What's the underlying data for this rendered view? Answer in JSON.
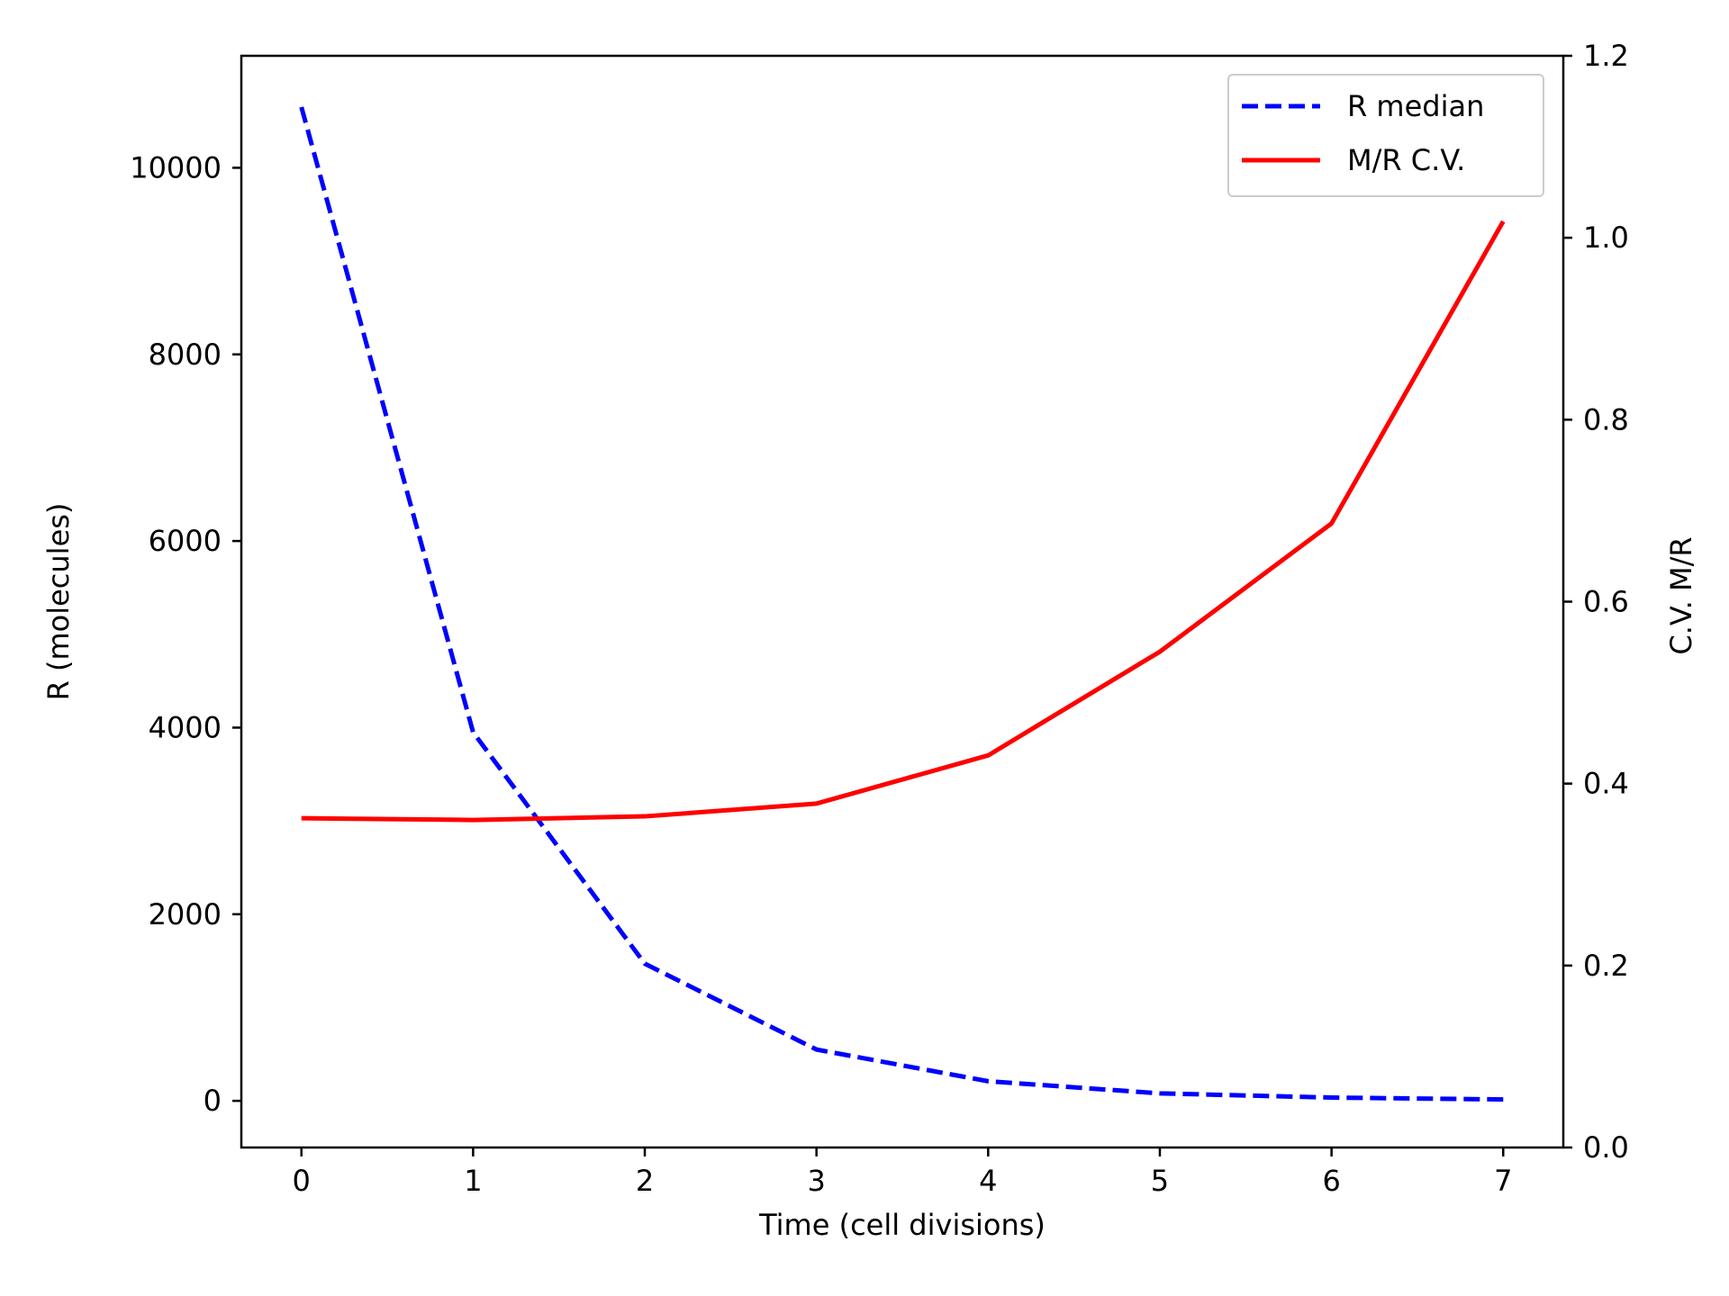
{
  "chart_data": {
    "type": "line",
    "xlabel": "Time (cell divisions)",
    "ylabel_left": "R (molecules)",
    "ylabel_right": "C.V. M/R",
    "x": [
      0,
      1,
      2,
      3,
      4,
      5,
      6,
      7
    ],
    "xlim": [
      -0.35,
      7.35
    ],
    "xticks": [
      "0",
      "1",
      "2",
      "3",
      "4",
      "5",
      "6",
      "7"
    ],
    "ylim_left": [
      -500,
      11200
    ],
    "yticks_left": [
      "0",
      "2000",
      "4000",
      "6000",
      "8000",
      "10000"
    ],
    "ylim_right": [
      0.0,
      1.2
    ],
    "yticks_right": [
      "0.0",
      "0.2",
      "0.4",
      "0.6",
      "0.8",
      "1.0",
      "1.2"
    ],
    "legend_position": "top-right",
    "grid": false,
    "series": [
      {
        "name": "R median",
        "axis": "left",
        "style": "dashed",
        "color": "#0000ff",
        "values": [
          10650,
          3950,
          1470,
          550,
          210,
          80,
          35,
          15
        ]
      },
      {
        "name": "M/R C.V.",
        "axis": "right",
        "style": "solid",
        "color": "#ff0000",
        "values": [
          0.362,
          0.36,
          0.364,
          0.378,
          0.431,
          0.545,
          0.686,
          1.018
        ]
      }
    ]
  }
}
